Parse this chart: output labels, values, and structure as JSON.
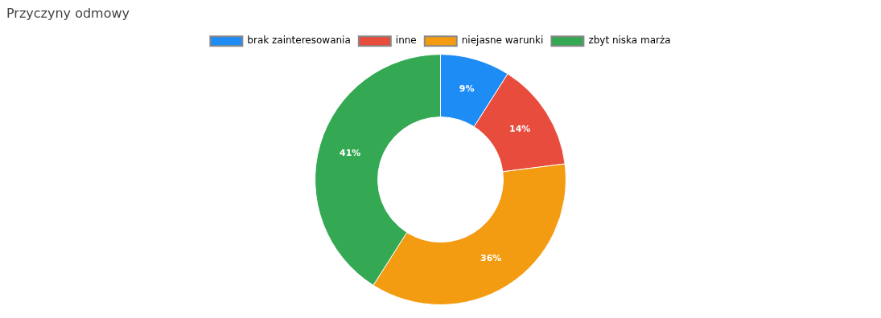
{
  "chart_data": {
    "type": "donut",
    "title": "Przyczyny odmowy",
    "categories": [
      "brak zainteresowania",
      "inne",
      "niejasne warunki",
      "zbyt niska marża"
    ],
    "values": [
      9,
      14,
      36,
      41
    ],
    "value_labels": [
      "9%",
      "14%",
      "36%",
      "41%"
    ],
    "colors": [
      "#1e8cf5",
      "#e74c3c",
      "#f39c12",
      "#34a853"
    ],
    "legend": "top"
  }
}
